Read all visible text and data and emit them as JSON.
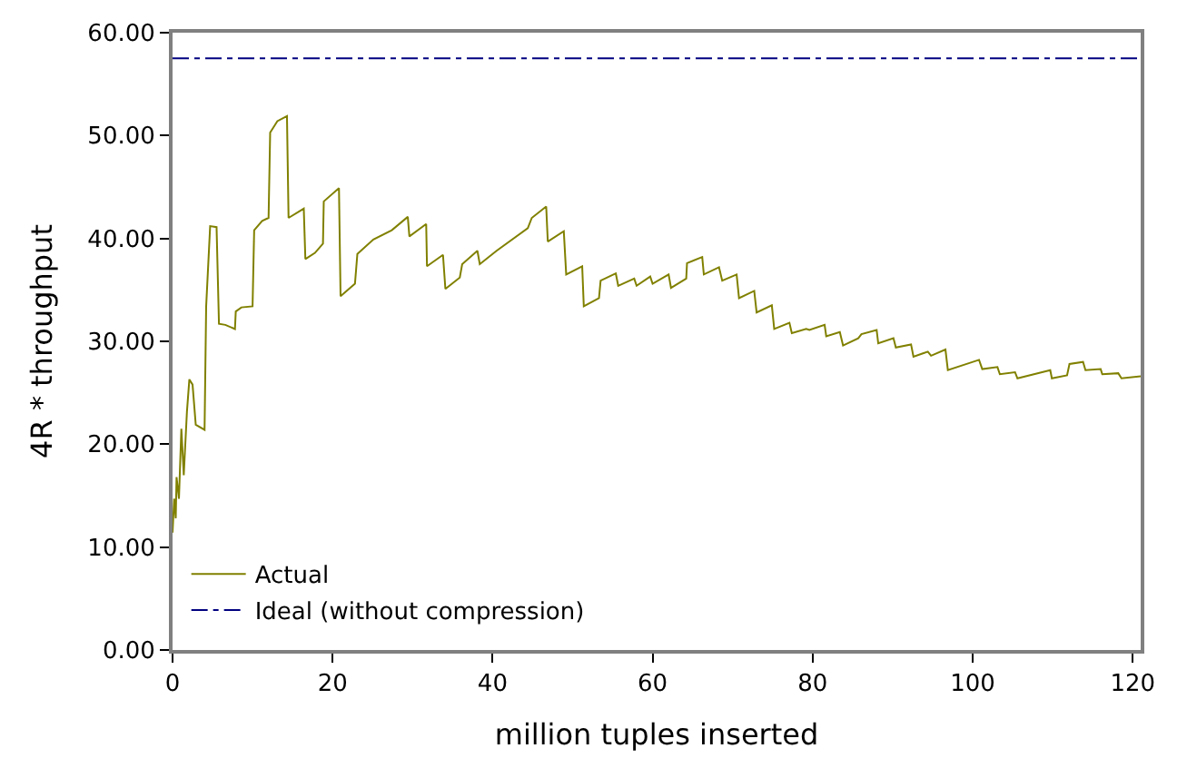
{
  "chart_data": {
    "type": "line",
    "xlabel": "million tuples inserted",
    "ylabel": "4R * throughput",
    "xlim": [
      0,
      121
    ],
    "xticks": [
      0,
      20,
      40,
      60,
      80,
      100,
      120
    ],
    "ylim": [
      0,
      60
    ],
    "yticks": [
      {
        "value": 0,
        "label": "0.00"
      },
      {
        "value": 10,
        "label": "10.00"
      },
      {
        "value": 20,
        "label": "20.00"
      },
      {
        "value": 30,
        "label": "30.00"
      },
      {
        "value": 40,
        "label": "40.00"
      },
      {
        "value": 50,
        "label": "50.00"
      },
      {
        "value": 60,
        "label": "60.00"
      }
    ],
    "legend": "bottom left",
    "series": [
      {
        "name": "Actual",
        "color": "#808000",
        "line_style": "solid",
        "x": [
          0,
          0.2,
          0.4,
          0.5,
          0.8,
          1.1,
          1.4,
          1.8,
          2.1,
          2.5,
          2.9,
          4.0,
          4.2,
          4.7,
          5.5,
          5.8,
          6.6,
          7.8,
          7.9,
          8.6,
          10.0,
          10.2,
          11.2,
          12.0,
          12.2,
          13.1,
          14.3,
          14.5,
          16.4,
          16.6,
          17.8,
          18.8,
          18.9,
          20.8,
          21.0,
          22.8,
          23.1,
          25.1,
          27.4,
          29.4,
          29.6,
          31.7,
          31.8,
          33.8,
          34.1,
          35.9,
          36.2,
          38.1,
          38.4,
          40.5,
          44.4,
          44.9,
          46.7,
          46.9,
          48.9,
          49.2,
          51.2,
          51.4,
          53.3,
          53.5,
          55.4,
          55.7,
          57.7,
          58.0,
          59.7,
          60.0,
          62.0,
          62.3,
          64.2,
          64.3,
          66.2,
          66.4,
          68.3,
          68.7,
          70.5,
          70.8,
          72.7,
          73.0,
          74.9,
          75.2,
          77.1,
          77.4,
          79.2,
          79.6,
          81.5,
          81.7,
          83.4,
          83.8,
          85.7,
          86.1,
          88.0,
          88.2,
          90.1,
          90.4,
          92.3,
          92.6,
          94.4,
          94.8,
          96.6,
          96.9,
          100.8,
          101.2,
          103.1,
          103.4,
          105.3,
          105.6,
          109.7,
          109.9,
          111.8,
          112.1,
          113.8,
          114.1,
          116.0,
          116.2,
          118.2,
          118.6,
          121.0
        ],
        "values": [
          11.4,
          14.7,
          12.8,
          16.8,
          14.7,
          21.5,
          17.0,
          23.2,
          26.3,
          25.8,
          21.9,
          21.4,
          33.4,
          41.2,
          41.1,
          31.7,
          31.6,
          31.2,
          32.9,
          33.3,
          33.4,
          40.8,
          41.7,
          42.0,
          50.3,
          51.4,
          51.9,
          42.0,
          42.9,
          38.0,
          38.6,
          39.5,
          43.6,
          44.9,
          34.4,
          35.6,
          38.5,
          39.9,
          40.8,
          42.1,
          40.2,
          41.4,
          37.3,
          38.4,
          35.1,
          36.2,
          37.5,
          38.8,
          37.5,
          38.8,
          41.0,
          42.0,
          43.1,
          39.7,
          40.7,
          36.5,
          37.3,
          33.4,
          34.2,
          35.9,
          36.6,
          35.4,
          36.1,
          35.4,
          36.3,
          35.6,
          36.5,
          35.2,
          36.1,
          37.6,
          38.2,
          36.5,
          37.2,
          35.9,
          36.5,
          34.2,
          34.9,
          32.8,
          33.5,
          31.2,
          31.8,
          30.8,
          31.2,
          31.1,
          31.6,
          30.5,
          30.9,
          29.6,
          30.3,
          30.7,
          31.1,
          29.8,
          30.3,
          29.4,
          29.7,
          28.5,
          29.0,
          28.6,
          29.2,
          27.2,
          28.2,
          27.3,
          27.5,
          26.8,
          27.0,
          26.4,
          27.2,
          26.4,
          26.7,
          27.8,
          28.0,
          27.2,
          27.3,
          26.8,
          26.9,
          26.4,
          26.6
        ]
      },
      {
        "name": "Ideal (without compression)",
        "color": "#000080",
        "line_style": "dashdot",
        "x": [
          0,
          121
        ],
        "values": [
          57.5,
          57.5
        ]
      }
    ]
  }
}
